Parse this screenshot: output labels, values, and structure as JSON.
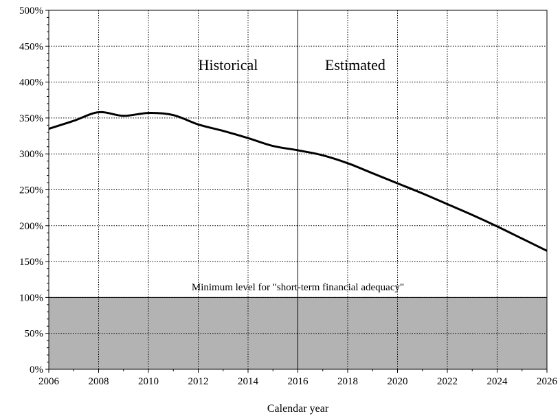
{
  "chart_data": {
    "type": "line",
    "title": "",
    "xlabel": "Calendar year",
    "ylabel": "",
    "xlim": [
      2006,
      2026
    ],
    "ylim": [
      0,
      500
    ],
    "x_ticks": [
      2006,
      2008,
      2010,
      2012,
      2014,
      2016,
      2018,
      2020,
      2022,
      2024,
      2026
    ],
    "x_tick_labels": [
      "2006",
      "2008",
      "2010",
      "2012",
      "2014",
      "2016",
      "2018",
      "2020",
      "2022",
      "2024",
      "2026"
    ],
    "y_ticks": [
      0,
      50,
      100,
      150,
      200,
      250,
      300,
      350,
      400,
      450,
      500
    ],
    "y_tick_labels": [
      "0%",
      "50%",
      "100%",
      "150%",
      "200%",
      "250%",
      "300%",
      "350%",
      "400%",
      "450%",
      "500%"
    ],
    "grid": true,
    "divider_x": 2016,
    "region_labels": {
      "historical": "Historical",
      "estimated": "Estimated"
    },
    "threshold": {
      "value": 100,
      "label": "Minimum level for \"short-term financial adequacy\"",
      "fill": "#b3b3b3"
    },
    "series": [
      {
        "x": [
          2006,
          2007,
          2008,
          2009,
          2010,
          2011,
          2012,
          2013,
          2014,
          2015,
          2016,
          2017,
          2018,
          2019,
          2020,
          2021,
          2022,
          2023,
          2024,
          2025,
          2026
        ],
        "values": [
          335,
          346,
          358,
          353,
          357,
          354,
          341,
          332,
          322,
          311,
          305,
          298,
          287,
          273,
          259,
          245,
          230,
          215,
          199,
          182,
          165
        ],
        "color": "#000000"
      }
    ]
  }
}
